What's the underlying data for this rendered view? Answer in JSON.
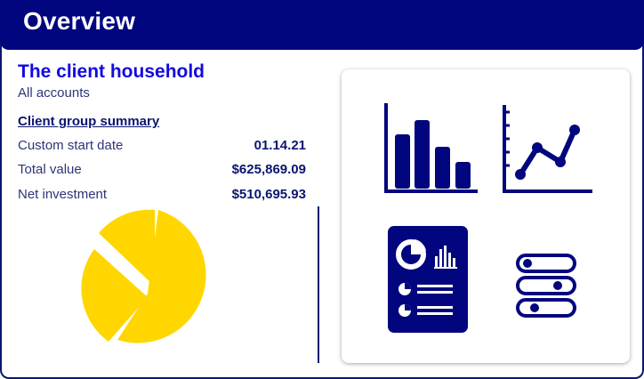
{
  "header": {
    "title": "Overview"
  },
  "client": {
    "title": "The client household",
    "subtitle": "All accounts",
    "summary_link": "Client group summary"
  },
  "summary": {
    "rows": [
      {
        "label": "Custom start date",
        "value": "01.14.21"
      },
      {
        "label": "Total value",
        "value": "$625,869.09"
      },
      {
        "label": "Net investment",
        "value": "$510,695.93"
      }
    ]
  },
  "icons": [
    "pie-chart-icon",
    "bar-chart-icon",
    "line-chart-icon",
    "report-document-icon",
    "toggle-switches-icon"
  ],
  "colors": {
    "header_bg": "#01067e",
    "title_blue": "#1309e0",
    "navy": "#0a1670",
    "pie_yellow": "#ffd600"
  }
}
